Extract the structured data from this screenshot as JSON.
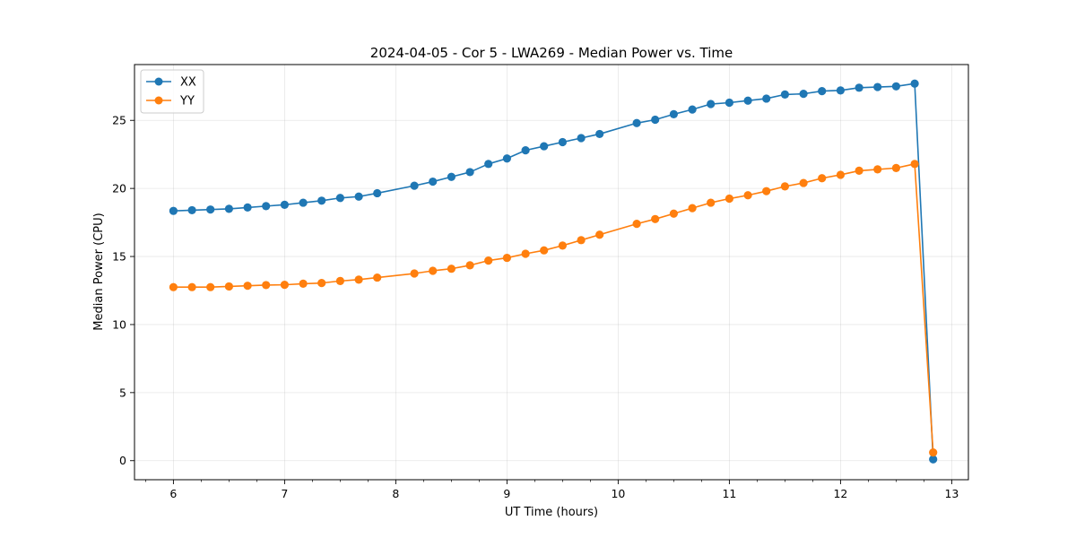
{
  "chart_data": {
    "type": "line",
    "title": "2024-04-05 - Cor 5 - LWA269 - Median Power vs. Time",
    "xlabel": "UT Time (hours)",
    "ylabel": "Median Power (CPU)",
    "xlim": [
      5.65,
      13.15
    ],
    "ylim": [
      -1.4,
      29.1
    ],
    "xticks": [
      6,
      7,
      8,
      9,
      10,
      11,
      12,
      13
    ],
    "yticks": [
      0,
      5,
      10,
      15,
      20,
      25
    ],
    "x_minor_step": 0.25,
    "grid": true,
    "legend_location": "upper-left",
    "series": [
      {
        "name": "XX",
        "color": "#1f77b4",
        "x": [
          6.0,
          6.167,
          6.333,
          6.5,
          6.667,
          6.833,
          7.0,
          7.167,
          7.333,
          7.5,
          7.667,
          7.833,
          8.167,
          8.333,
          8.5,
          8.667,
          8.833,
          9.0,
          9.167,
          9.333,
          9.5,
          9.667,
          9.833,
          10.167,
          10.333,
          10.5,
          10.667,
          10.833,
          11.0,
          11.167,
          11.333,
          11.5,
          11.667,
          11.833,
          12.0,
          12.167,
          12.333,
          12.5,
          12.667,
          12.833
        ],
        "y": [
          18.35,
          18.4,
          18.45,
          18.5,
          18.6,
          18.7,
          18.8,
          18.95,
          19.1,
          19.3,
          19.4,
          19.65,
          20.2,
          20.5,
          20.85,
          21.2,
          21.8,
          22.2,
          22.8,
          23.1,
          23.4,
          23.7,
          24.0,
          24.8,
          25.05,
          25.45,
          25.8,
          26.2,
          26.3,
          26.45,
          26.6,
          26.9,
          26.95,
          27.15,
          27.2,
          27.4,
          27.45,
          27.5,
          27.7,
          0.1
        ]
      },
      {
        "name": "YY",
        "color": "#ff7f0e",
        "x": [
          6.0,
          6.167,
          6.333,
          6.5,
          6.667,
          6.833,
          7.0,
          7.167,
          7.333,
          7.5,
          7.667,
          7.833,
          8.167,
          8.333,
          8.5,
          8.667,
          8.833,
          9.0,
          9.167,
          9.333,
          9.5,
          9.667,
          9.833,
          10.167,
          10.333,
          10.5,
          10.667,
          10.833,
          11.0,
          11.167,
          11.333,
          11.5,
          11.667,
          11.833,
          12.0,
          12.167,
          12.333,
          12.5,
          12.667,
          12.833
        ],
        "y": [
          12.75,
          12.75,
          12.75,
          12.8,
          12.85,
          12.9,
          12.92,
          13.0,
          13.05,
          13.2,
          13.3,
          13.45,
          13.75,
          13.95,
          14.1,
          14.35,
          14.7,
          14.9,
          15.2,
          15.45,
          15.8,
          16.2,
          16.6,
          17.4,
          17.75,
          18.15,
          18.55,
          18.95,
          19.25,
          19.5,
          19.8,
          20.15,
          20.4,
          20.75,
          21.0,
          21.3,
          21.4,
          21.5,
          21.8,
          0.6
        ]
      }
    ]
  }
}
